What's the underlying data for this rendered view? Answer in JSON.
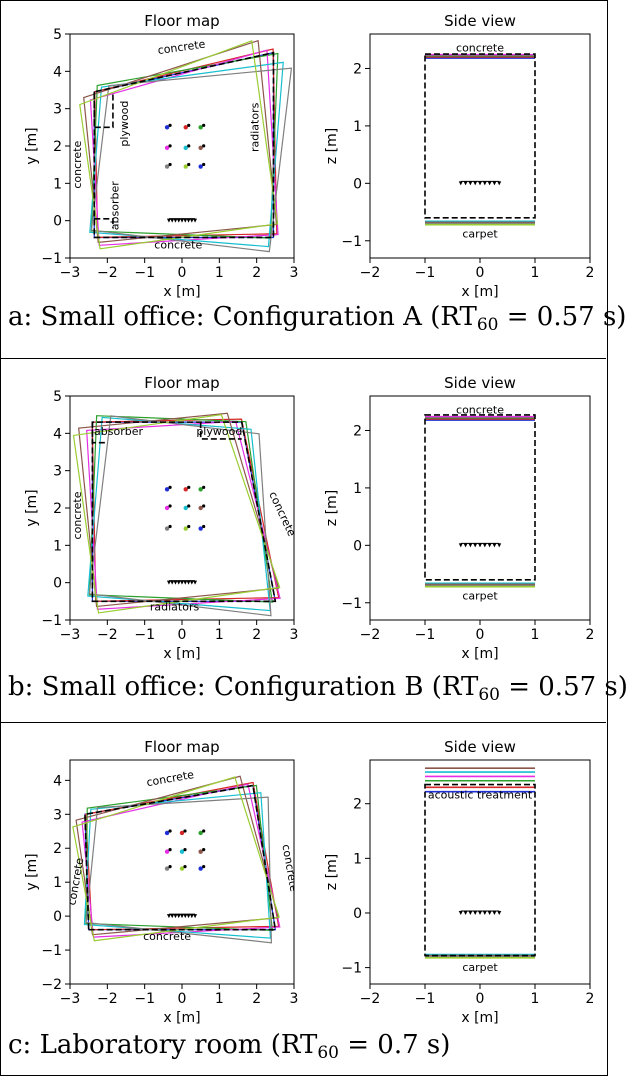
{
  "colors": {
    "dashed": "#000000",
    "series": [
      "#1f2fd6",
      "#d62728",
      "#2ca02c",
      "#e62ee6",
      "#17becf",
      "#8c564b",
      "#7f7f7f",
      "#9acd32"
    ]
  },
  "chart_data": [
    {
      "id": "a-floor",
      "type": "scatter",
      "title": "Floor map",
      "xlabel": "x [m]",
      "ylabel": "y [m]",
      "xlim": [
        -3,
        3
      ],
      "ylim": [
        -1,
        5
      ],
      "xticks": [
        "−3",
        "−2",
        "−1",
        "0",
        "1",
        "2",
        "3"
      ],
      "yticks": [
        "−1",
        "0",
        "1",
        "2",
        "3",
        "4",
        "5"
      ],
      "annotations": [
        "concrete",
        "plywood",
        "radiators",
        "concrete",
        "absorber",
        "concrete"
      ],
      "dashed_room": [
        [
          -2.35,
          -0.45
        ],
        [
          2.45,
          -0.45
        ],
        [
          2.45,
          4.5
        ],
        [
          -2.35,
          3.45
        ]
      ],
      "sources": [
        [
          -0.4,
          2.5
        ],
        [
          0.1,
          2.5
        ],
        [
          0.5,
          2.5
        ],
        [
          -0.4,
          1.95
        ],
        [
          0.1,
          1.95
        ],
        [
          0.5,
          1.95
        ],
        [
          -0.4,
          1.45
        ],
        [
          0.1,
          1.45
        ],
        [
          0.5,
          1.45
        ]
      ],
      "array": {
        "x0": -0.35,
        "x1": 0.35,
        "y": 0
      }
    },
    {
      "id": "a-side",
      "type": "line",
      "title": "Side view",
      "xlabel": "x [m]",
      "ylabel": "z [m]",
      "xlim": [
        -2,
        2
      ],
      "ylim": [
        -1.3,
        2.6
      ],
      "xticks": [
        "−2",
        "−1",
        "0",
        "1",
        "2"
      ],
      "yticks": [
        "−1",
        "0",
        "1",
        "2"
      ],
      "top_label": "concrete",
      "bottom_label": "carpet",
      "dashed_box": {
        "x0": -1,
        "x1": 1,
        "z0": -0.6,
        "z1": 2.25
      },
      "ceiling_lines": [
        2.18,
        2.2,
        2.22,
        2.24
      ],
      "floor_lines": [
        -0.66,
        -0.68,
        -0.7,
        -0.72
      ],
      "array": {
        "x0": -0.35,
        "x1": 0.35,
        "z": 0
      }
    },
    {
      "id": "b-floor",
      "type": "scatter",
      "title": "Floor map",
      "xlabel": "x [m]",
      "ylabel": "y [m]",
      "xlim": [
        -3,
        3
      ],
      "ylim": [
        -1,
        5
      ],
      "xticks": [
        "−3",
        "−2",
        "−1",
        "0",
        "1",
        "2",
        "3"
      ],
      "yticks": [
        "−1",
        "0",
        "1",
        "2",
        "3",
        "4",
        "5"
      ],
      "annotations": [
        "absorber",
        "plywood",
        "concrete",
        "concrete",
        "radiators"
      ],
      "dashed_room": [
        [
          -2.4,
          -0.5
        ],
        [
          2.5,
          -0.5
        ],
        [
          1.6,
          4.3
        ],
        [
          -2.4,
          4.3
        ]
      ],
      "sources": [
        [
          -0.4,
          2.5
        ],
        [
          0.1,
          2.5
        ],
        [
          0.5,
          2.5
        ],
        [
          -0.4,
          2.0
        ],
        [
          0.1,
          2.0
        ],
        [
          0.5,
          2.0
        ],
        [
          -0.4,
          1.45
        ],
        [
          0.1,
          1.45
        ],
        [
          0.5,
          1.45
        ]
      ],
      "array": {
        "x0": -0.35,
        "x1": 0.35,
        "y": 0
      }
    },
    {
      "id": "b-side",
      "type": "line",
      "title": "Side view",
      "xlabel": "x [m]",
      "ylabel": "z [m]",
      "xlim": [
        -2,
        2
      ],
      "ylim": [
        -1.3,
        2.6
      ],
      "xticks": [
        "−2",
        "−1",
        "0",
        "1",
        "2"
      ],
      "yticks": [
        "−1",
        "0",
        "1",
        "2"
      ],
      "top_label": "concrete",
      "bottom_label": "carpet",
      "dashed_box": {
        "x0": -1,
        "x1": 1,
        "z0": -0.6,
        "z1": 2.27
      },
      "ceiling_lines": [
        2.18,
        2.2,
        2.22,
        2.24
      ],
      "floor_lines": [
        -0.66,
        -0.68,
        -0.7,
        -0.72
      ],
      "array": {
        "x0": -0.35,
        "x1": 0.35,
        "z": 0
      }
    },
    {
      "id": "c-floor",
      "type": "scatter",
      "title": "Floor map",
      "xlabel": "x [m]",
      "ylabel": "y [m]",
      "xlim": [
        -3,
        3
      ],
      "ylim": [
        -2,
        4.6
      ],
      "xticks": [
        "−3",
        "−2",
        "−1",
        "0",
        "1",
        "2",
        "3"
      ],
      "yticks": [
        "−2",
        "−1",
        "0",
        "1",
        "2",
        "3",
        "4"
      ],
      "annotations": [
        "concrete",
        "concrete",
        "concrete",
        "concrete"
      ],
      "dashed_room": [
        [
          -2.5,
          -0.4
        ],
        [
          2.5,
          -0.4
        ],
        [
          1.9,
          3.85
        ],
        [
          -2.6,
          3.0
        ]
      ],
      "sources": [
        [
          -0.4,
          2.45
        ],
        [
          0.0,
          2.45
        ],
        [
          0.5,
          2.45
        ],
        [
          -0.4,
          1.9
        ],
        [
          0.0,
          1.9
        ],
        [
          0.5,
          1.9
        ],
        [
          -0.4,
          1.4
        ],
        [
          0.0,
          1.4
        ],
        [
          0.5,
          1.4
        ]
      ],
      "array": {
        "x0": -0.35,
        "x1": 0.35,
        "y": 0
      }
    },
    {
      "id": "c-side",
      "type": "line",
      "title": "Side view",
      "xlabel": "x [m]",
      "ylabel": "z [m]",
      "xlim": [
        -2,
        2
      ],
      "ylim": [
        -1.3,
        2.8
      ],
      "xticks": [
        "−2",
        "−1",
        "0",
        "1",
        "2"
      ],
      "yticks": [
        "−1",
        "0",
        "1",
        "2"
      ],
      "top_label": "acoustic treatment",
      "bottom_label": "carpet",
      "dashed_box": {
        "x0": -1,
        "x1": 1,
        "z0": -0.78,
        "z1": 2.35
      },
      "ceiling_lines": [
        2.22,
        2.3,
        2.42,
        2.5,
        2.58,
        2.65
      ],
      "floor_lines": [
        -0.76,
        -0.78,
        -0.8,
        -0.82
      ],
      "array": {
        "x0": -0.35,
        "x1": 0.35,
        "z": 0
      }
    }
  ],
  "captions": {
    "a": {
      "prefix": "a: Small office: Configuration A (RT",
      "sub": "60",
      "suffix": " = 0.57 s)"
    },
    "b": {
      "prefix": "b: Small office: Configuration B (RT",
      "sub": "60",
      "suffix": " = 0.57 s)"
    },
    "c": {
      "prefix": "c: Laboratory room (RT",
      "sub": "60",
      "suffix": " = 0.7 s)"
    }
  }
}
